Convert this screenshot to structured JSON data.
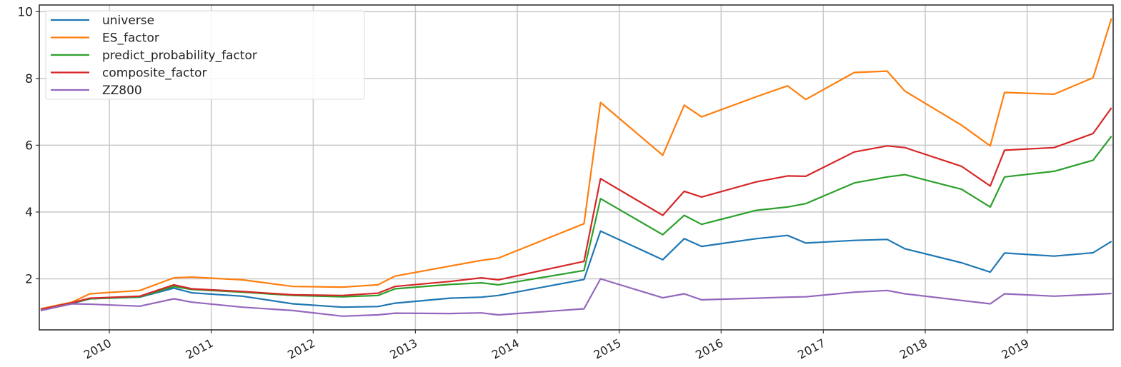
{
  "chart_data": {
    "type": "line",
    "title": "",
    "xlabel": "",
    "ylabel": "",
    "x_is_date": true,
    "xlim": [
      "2009-04-25",
      "2019-11-05"
    ],
    "ylim": [
      0.47,
      10.2
    ],
    "grid": true,
    "legend_placement": "top-left",
    "x_ticks": [
      "2010",
      "2011",
      "2012",
      "2013",
      "2014",
      "2015",
      "2016",
      "2017",
      "2018",
      "2019"
    ],
    "y_ticks": [
      "2",
      "4",
      "6",
      "8",
      "10"
    ],
    "x": [
      "2009-04-30",
      "2009-08-20",
      "2009-10-23",
      "2010-04-20",
      "2010-08-20",
      "2010-10-23",
      "2011-04-22",
      "2011-10-20",
      "2012-04-15",
      "2012-08-20",
      "2012-10-20",
      "2013-05-04",
      "2013-08-25",
      "2013-10-25",
      "2014-08-28",
      "2014-10-26",
      "2015-06-06",
      "2015-08-22",
      "2015-10-23",
      "2016-05-05",
      "2016-08-26",
      "2016-10-30",
      "2017-04-22",
      "2017-08-18",
      "2017-10-20",
      "2018-05-11",
      "2018-08-22",
      "2018-10-12",
      "2019-04-08",
      "2019-08-25",
      "2019-10-30"
    ],
    "series": [
      {
        "name": "universe",
        "color": "#1f77b4",
        "values": [
          1.06,
          1.26,
          1.4,
          1.45,
          1.72,
          1.58,
          1.48,
          1.25,
          1.15,
          1.17,
          1.27,
          1.42,
          1.45,
          1.5,
          1.98,
          3.43,
          2.57,
          3.2,
          2.97,
          3.2,
          3.3,
          3.07,
          3.15,
          3.18,
          2.9,
          2.48,
          2.2,
          2.77,
          2.68,
          2.78,
          3.12
        ]
      },
      {
        "name": "ES_factor",
        "color": "#ff7f0e",
        "values": [
          1.1,
          1.3,
          1.55,
          1.65,
          2.03,
          2.05,
          1.97,
          1.77,
          1.75,
          1.82,
          2.08,
          2.38,
          2.55,
          2.62,
          3.65,
          7.28,
          5.7,
          7.2,
          6.85,
          7.45,
          7.78,
          7.37,
          8.18,
          8.22,
          7.62,
          6.6,
          5.98,
          7.58,
          7.53,
          8.02,
          9.8
        ]
      },
      {
        "name": "predict_probability_factor",
        "color": "#2ca02c",
        "values": [
          1.08,
          1.28,
          1.4,
          1.46,
          1.77,
          1.68,
          1.6,
          1.5,
          1.46,
          1.5,
          1.7,
          1.83,
          1.88,
          1.82,
          2.25,
          4.4,
          3.32,
          3.9,
          3.63,
          4.05,
          4.15,
          4.25,
          4.87,
          5.05,
          5.12,
          4.68,
          4.15,
          5.05,
          5.22,
          5.55,
          6.27
        ]
      },
      {
        "name": "composite_factor",
        "color": "#d62728",
        "values": [
          1.08,
          1.28,
          1.42,
          1.48,
          1.82,
          1.7,
          1.62,
          1.52,
          1.5,
          1.57,
          1.77,
          1.92,
          2.03,
          1.97,
          2.52,
          5.0,
          3.9,
          4.62,
          4.45,
          4.9,
          5.08,
          5.07,
          5.8,
          5.98,
          5.93,
          5.37,
          4.78,
          5.85,
          5.93,
          6.35,
          7.12
        ]
      },
      {
        "name": "ZZ800",
        "color": "#9467bd",
        "values": [
          1.05,
          1.25,
          1.24,
          1.18,
          1.4,
          1.3,
          1.15,
          1.05,
          0.88,
          0.92,
          0.97,
          0.96,
          0.98,
          0.92,
          1.1,
          2.0,
          1.43,
          1.55,
          1.37,
          1.42,
          1.45,
          1.46,
          1.6,
          1.65,
          1.55,
          1.35,
          1.25,
          1.55,
          1.48,
          1.53,
          1.56
        ]
      }
    ]
  }
}
